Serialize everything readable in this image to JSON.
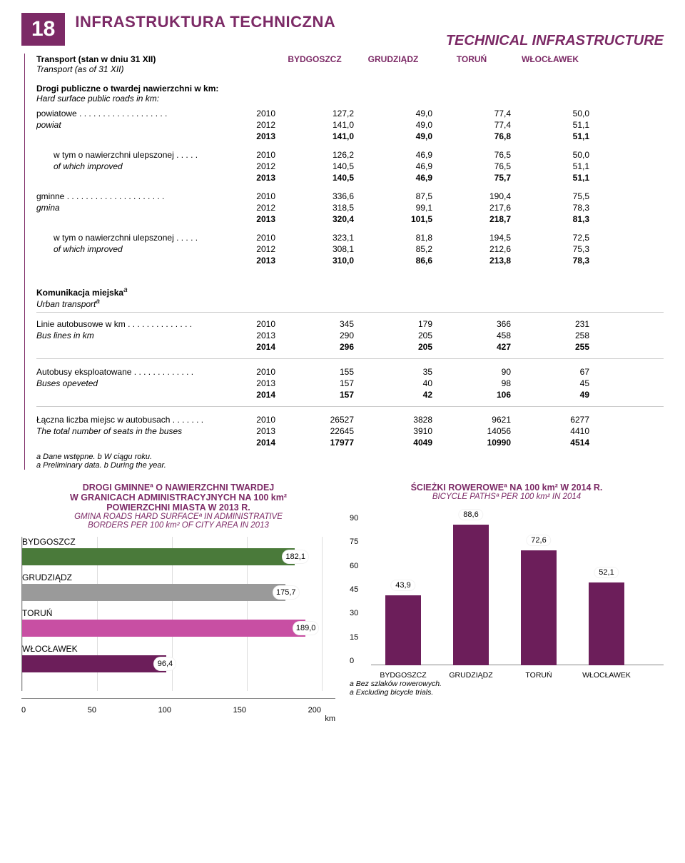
{
  "header": {
    "pagenum": "18",
    "title_pl": "INFRASTRUKTURA TECHNICZNA",
    "title_en": "TECHNICAL INFRASTRUCTURE"
  },
  "table_header": {
    "label_pl": "Transport (stan w dniu 31 XII)",
    "label_en": "Transport (as of 31 XII)",
    "cols": [
      "BYDGOSZCZ",
      "GRUDZIĄDZ",
      "TORUŃ",
      "WŁOCŁAWEK"
    ]
  },
  "section1": {
    "title_pl": "Drogi publiczne o twardej nawierzchni w km:",
    "title_en": "Hard surface public roads in km:",
    "rows": [
      {
        "label_pl": "powiatowe",
        "label_en": "powiat",
        "dots": " . . . . . . . . . . . . . . . . . . .",
        "lines": [
          {
            "yr": "2010",
            "v": [
              "127,2",
              "49,0",
              "77,4",
              "50,0"
            ],
            "bold": false
          },
          {
            "yr": "2012",
            "v": [
              "141,0",
              "49,0",
              "77,4",
              "51,1"
            ],
            "bold": false
          },
          {
            "yr": "2013",
            "v": [
              "141,0",
              "49,0",
              "76,8",
              "51,1"
            ],
            "bold": true
          }
        ]
      },
      {
        "label_pl": "w tym o nawierzchni ulepszonej",
        "label_en": "of which improved",
        "dots": " . . . . .",
        "indent": true,
        "lines": [
          {
            "yr": "2010",
            "v": [
              "126,2",
              "46,9",
              "76,5",
              "50,0"
            ],
            "bold": false
          },
          {
            "yr": "2012",
            "v": [
              "140,5",
              "46,9",
              "76,5",
              "51,1"
            ],
            "bold": false
          },
          {
            "yr": "2013",
            "v": [
              "140,5",
              "46,9",
              "75,7",
              "51,1"
            ],
            "bold": true
          }
        ]
      },
      {
        "label_pl": "gminne",
        "label_en": "gmina",
        "dots": " . . . . . . . . . . . . . . . . . . . . .",
        "lines": [
          {
            "yr": "2010",
            "v": [
              "336,6",
              "87,5",
              "190,4",
              "75,5"
            ],
            "bold": false
          },
          {
            "yr": "2012",
            "v": [
              "318,5",
              "99,1",
              "217,6",
              "78,3"
            ],
            "bold": false
          },
          {
            "yr": "2013",
            "v": [
              "320,4",
              "101,5",
              "218,7",
              "81,3"
            ],
            "bold": true
          }
        ]
      },
      {
        "label_pl": "w tym o nawierzchni ulepszonej",
        "label_en": "of which improved",
        "dots": " . . . . .",
        "indent": true,
        "lines": [
          {
            "yr": "2010",
            "v": [
              "323,1",
              "81,8",
              "194,5",
              "72,5"
            ],
            "bold": false
          },
          {
            "yr": "2012",
            "v": [
              "308,1",
              "85,2",
              "212,6",
              "75,3"
            ],
            "bold": false
          },
          {
            "yr": "2013",
            "v": [
              "310,0",
              "86,6",
              "213,8",
              "78,3"
            ],
            "bold": true
          }
        ]
      }
    ]
  },
  "section2": {
    "title_pl": "Komunikacja miejska",
    "sup_pl": "a",
    "title_en": "Urban transport",
    "sup_en": "a",
    "rows": [
      {
        "label_pl": "Linie autobusowe w km",
        "label_en": "Bus lines in km",
        "dots": " . . . . . . . . . . . . . .",
        "lines": [
          {
            "yr": "2010",
            "v": [
              "345",
              "179",
              "366",
              "231"
            ],
            "bold": false
          },
          {
            "yr": "2013",
            "v": [
              "290",
              "205",
              "458",
              "258"
            ],
            "bold": false
          },
          {
            "yr": "2014",
            "v": [
              "296",
              "205",
              "427",
              "255"
            ],
            "bold": true
          }
        ]
      },
      {
        "label_pl": "Autobusy eksploatowane",
        "label_en": "Buses opeveted",
        "dots": " . . . . . . . . . . . . .",
        "lines": [
          {
            "yr": "2010",
            "v": [
              "155",
              "35",
              "90",
              "67"
            ],
            "bold": false
          },
          {
            "yr": "2013",
            "v": [
              "157",
              "40",
              "98",
              "45"
            ],
            "bold": false
          },
          {
            "yr": "2014",
            "v": [
              "157",
              "42",
              "106",
              "49"
            ],
            "bold": true
          }
        ]
      },
      {
        "label_pl": "Łączna liczba miejsc w autobusach",
        "label_en": "The total number of seats in the buses",
        "dots": " . . . . . . .",
        "lines": [
          {
            "yr": "2010",
            "v": [
              "26527",
              "3828",
              "9621",
              "6277"
            ],
            "bold": false
          },
          {
            "yr": "2013",
            "v": [
              "22645",
              "3910",
              "14056",
              "4410"
            ],
            "bold": false
          },
          {
            "yr": "2014",
            "v": [
              "17977",
              "4049",
              "10990",
              "4514"
            ],
            "bold": true
          }
        ]
      }
    ]
  },
  "footnotes": {
    "a_pl": "a  Dane wstępne.  b  W ciągu roku.",
    "a_en": "a  Preliminary data.  b  During the year."
  },
  "chart_left": {
    "title1": "DROGI GMINNEª O NAWIERZCHNI TWARDEJ",
    "title2": "W GRANICACH ADMINISTRACYJNYCH NA 100 km²",
    "title3": "POWIERZCHNI MIASTA W 2013 R.",
    "title_en1": "GMINA ROADS HARD SURFACEª IN ADMINISTRATIVE",
    "title_en2": "BORDERS PER 100 km² OF CITY AREA IN 2013",
    "type": "hbar",
    "xmax": 200,
    "ticks": [
      "0",
      "50",
      "100",
      "150",
      "200"
    ],
    "unit": "km",
    "bars": [
      {
        "label": "BYDGOSZCZ",
        "value": 182.1,
        "disp": "182,1",
        "color": "#4a7a3a"
      },
      {
        "label": "GRUDZIĄDZ",
        "value": 175.7,
        "disp": "175,7",
        "color": "#9a9a9a"
      },
      {
        "label": "TORUŃ",
        "value": 189.0,
        "disp": "189,0",
        "color": "#c84fa3"
      },
      {
        "label": "WŁOCŁAWEK",
        "value": 96.4,
        "disp": "96,4",
        "color": "#6c1e5a"
      }
    ]
  },
  "chart_right": {
    "title1": "ŚCIEŻKI ROWEROWEª NA 100 km² W 2014 R.",
    "title_en1": "BICYCLE PATHSª PER 100 km² IN 2014",
    "type": "vbar",
    "ymax": 90,
    "ticks": [
      "0",
      "15",
      "30",
      "45",
      "60",
      "75",
      "90"
    ],
    "bars": [
      {
        "label": "BYDGOSZCZ",
        "value": 43.9,
        "disp": "43,9",
        "color": "#6c1e5a"
      },
      {
        "label": "GRUDZIĄDZ",
        "value": 88.6,
        "disp": "88,6",
        "color": "#6c1e5a"
      },
      {
        "label": "TORUŃ",
        "value": 72.6,
        "disp": "72,6",
        "color": "#6c1e5a"
      },
      {
        "label": "WŁOCŁAWEK",
        "value": 52.1,
        "disp": "52,1",
        "color": "#6c1e5a"
      }
    ],
    "foot_pl": "a  Bez szlaków rowerowych.",
    "foot_en": "a  Excluding bicycle trials."
  }
}
